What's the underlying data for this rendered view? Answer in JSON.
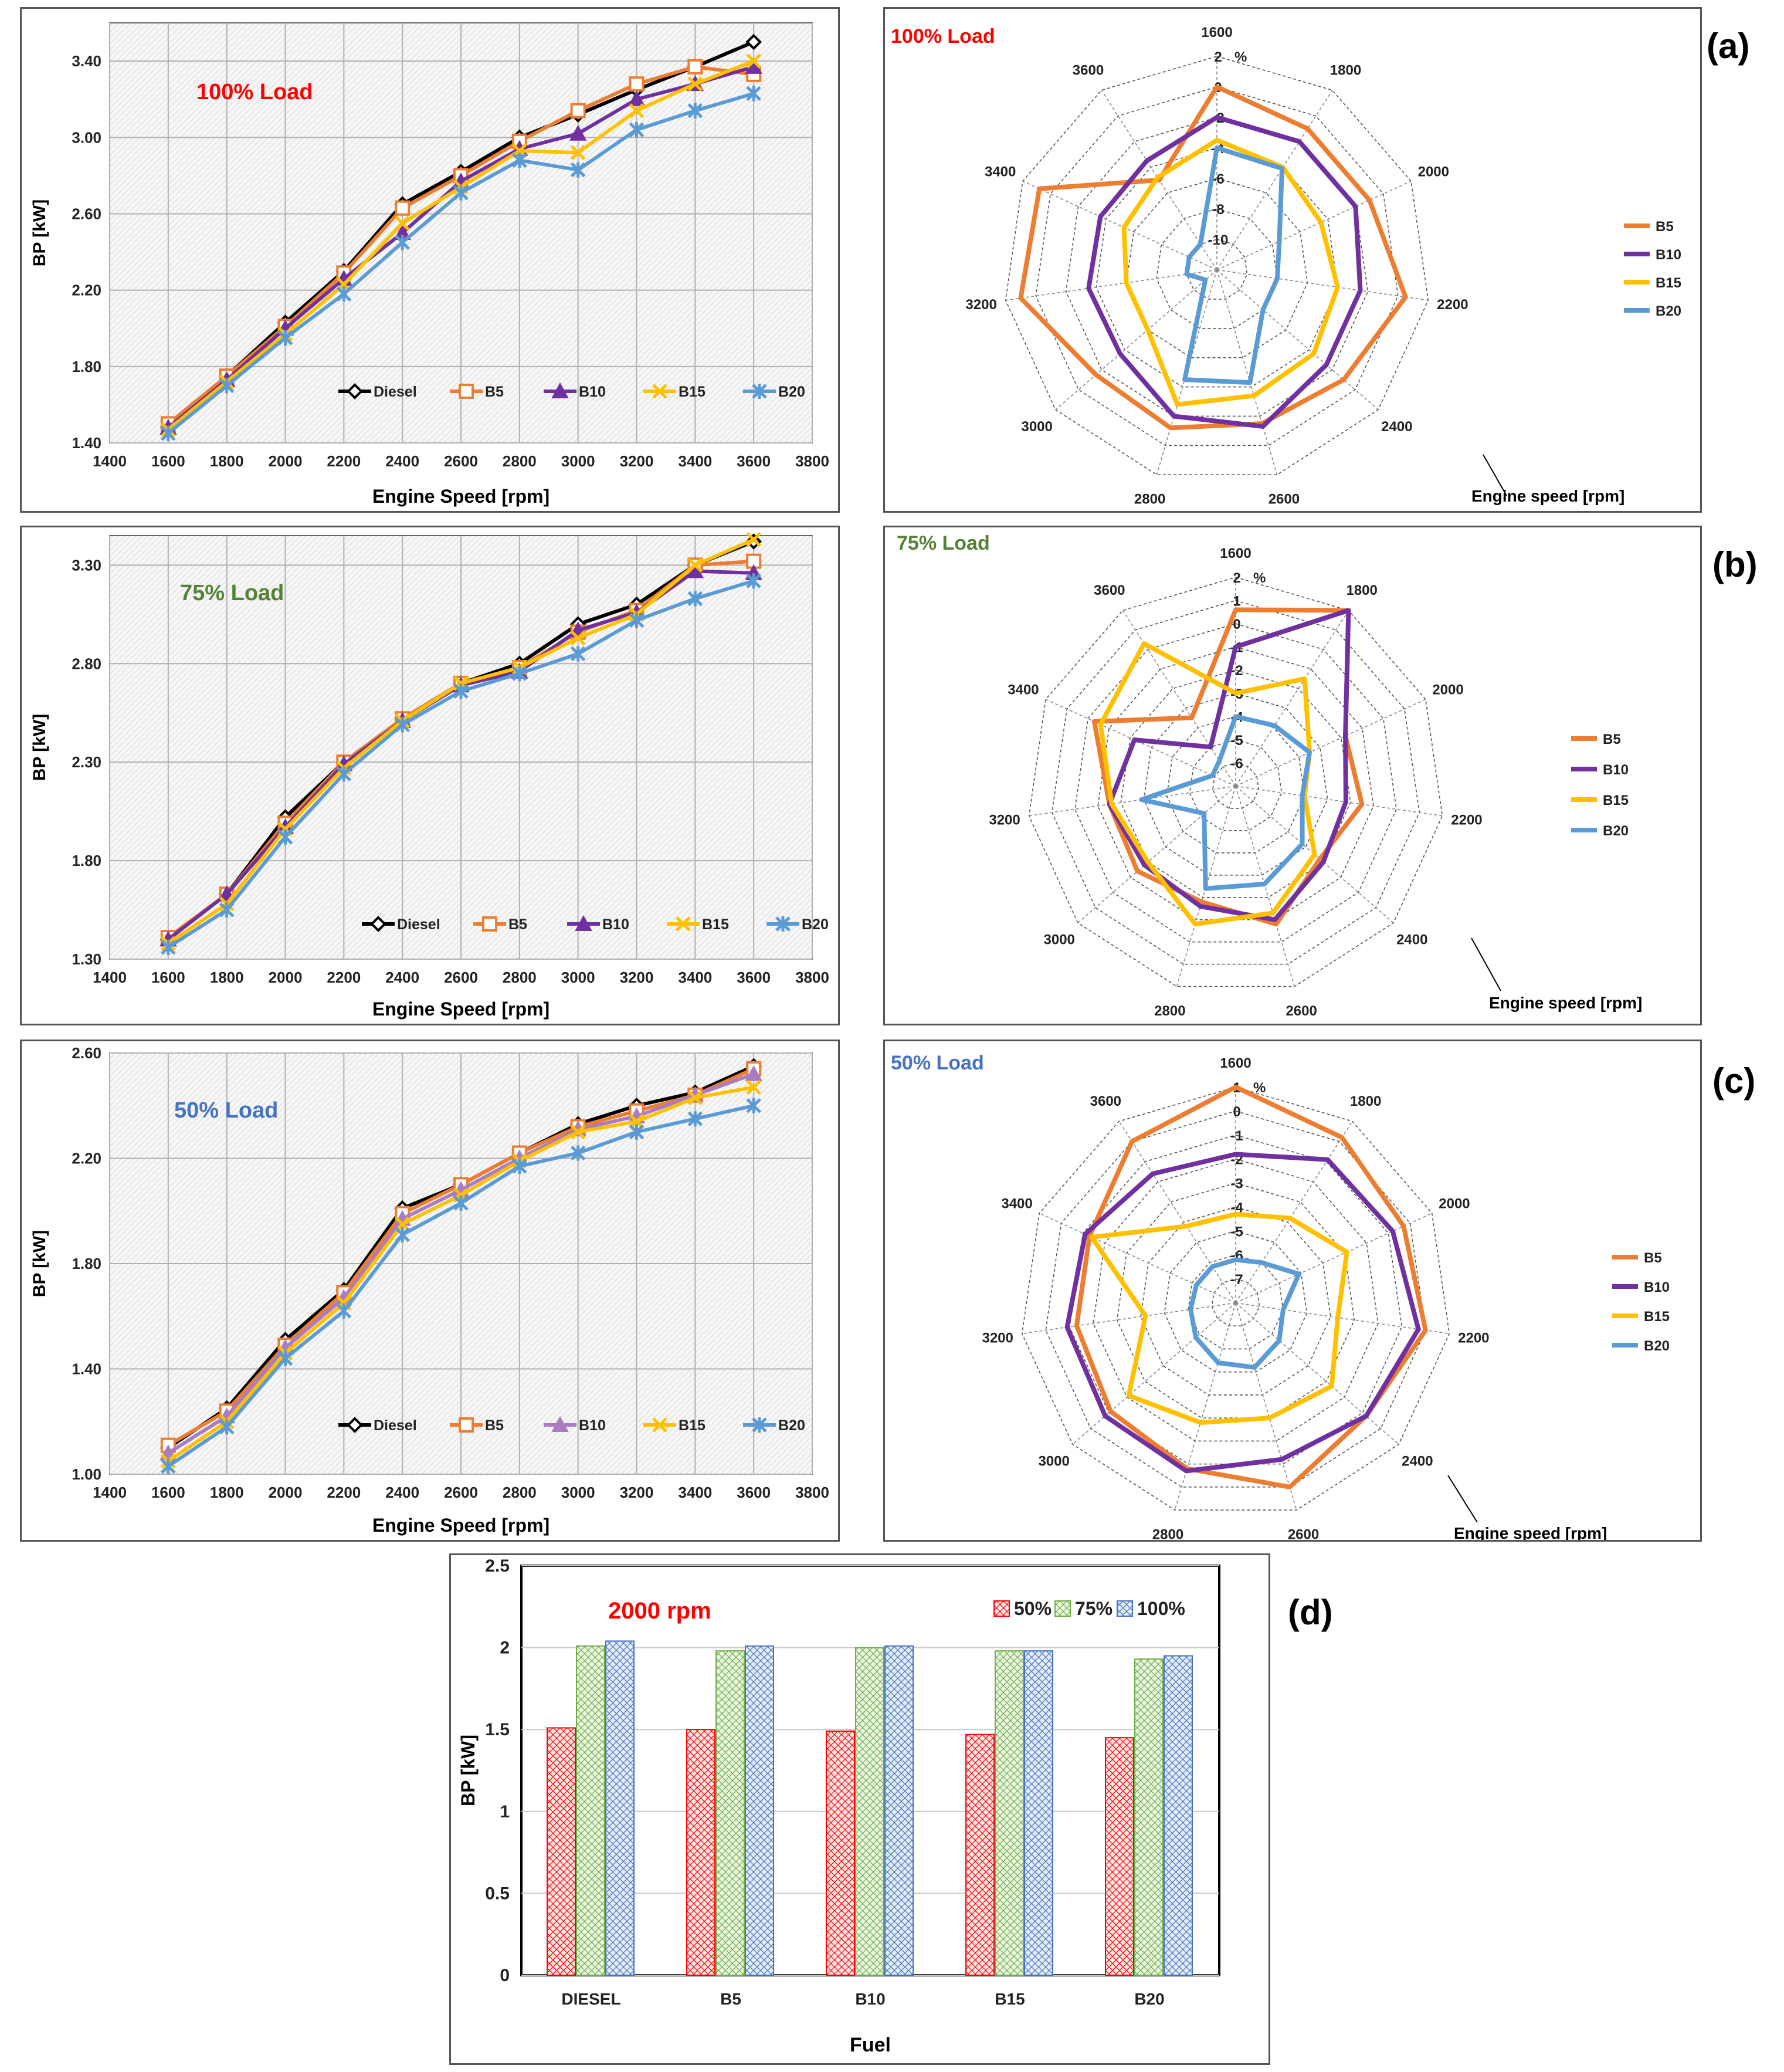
{
  "figure_tags": {
    "a": "(a)",
    "b": "(b)",
    "c": "(c)",
    "d": "(d)"
  },
  "chart_data": [
    {
      "id": "line_100",
      "type": "line",
      "title": "100% Load",
      "title_color": "#ff0000",
      "xlabel": "Engine Speed [rpm]",
      "ylabel": "BP [kW]",
      "xlim": [
        1400,
        3800
      ],
      "ylim": [
        1.4,
        3.6
      ],
      "xticks": [
        "1400",
        "1600",
        "1800",
        "2000",
        "2200",
        "2400",
        "2600",
        "2800",
        "3000",
        "3200",
        "3400",
        "3600",
        "3800"
      ],
      "yticks": [
        "1.40",
        "1.80",
        "2.20",
        "2.60",
        "3.00",
        "3.40"
      ],
      "x": [
        1600,
        1800,
        2000,
        2200,
        2400,
        2600,
        2800,
        3000,
        3200,
        3400,
        3600
      ],
      "legend_position": "bottom-right",
      "series": [
        {
          "name": "Diesel",
          "color": "#000000",
          "marker": "diamond",
          "values": [
            1.48,
            1.75,
            2.03,
            2.3,
            2.65,
            2.82,
            3.0,
            3.12,
            3.25,
            3.37,
            3.5
          ]
        },
        {
          "name": "B5",
          "color": "#ed7d31",
          "marker": "square",
          "values": [
            1.5,
            1.75,
            2.01,
            2.29,
            2.63,
            2.8,
            2.98,
            3.14,
            3.28,
            3.37,
            3.33
          ]
        },
        {
          "name": "B10",
          "color": "#7030a0",
          "marker": "triangle",
          "values": [
            1.48,
            1.73,
            2.0,
            2.26,
            2.5,
            2.77,
            2.94,
            3.02,
            3.2,
            3.28,
            3.37
          ]
        },
        {
          "name": "B15",
          "color": "#ffc000",
          "marker": "x",
          "values": [
            1.47,
            1.72,
            1.97,
            2.23,
            2.55,
            2.74,
            2.93,
            2.92,
            3.14,
            3.28,
            3.4
          ]
        },
        {
          "name": "B20",
          "color": "#5b9bd5",
          "marker": "star",
          "values": [
            1.45,
            1.7,
            1.95,
            2.18,
            2.45,
            2.71,
            2.88,
            2.83,
            3.04,
            3.14,
            3.23
          ]
        }
      ]
    },
    {
      "id": "line_75",
      "type": "line",
      "title": "75% Load",
      "title_color": "#548235",
      "xlabel": "Engine Speed [rpm]",
      "ylabel": "BP [kW]",
      "xlim": [
        1400,
        3800
      ],
      "ylim": [
        1.3,
        3.45
      ],
      "xticks": [
        "1400",
        "1600",
        "1800",
        "2000",
        "2200",
        "2400",
        "2600",
        "2800",
        "3000",
        "3200",
        "3400",
        "3600",
        "3800"
      ],
      "yticks": [
        "1.30",
        "1.80",
        "2.30",
        "2.80",
        "3.30"
      ],
      "x": [
        1600,
        1800,
        2000,
        2200,
        2400,
        2600,
        2800,
        3000,
        3200,
        3400,
        3600
      ],
      "legend_position": "bottom-right",
      "series": [
        {
          "name": "Diesel",
          "color": "#000000",
          "marker": "diamond",
          "values": [
            1.4,
            1.63,
            2.02,
            2.3,
            2.52,
            2.7,
            2.8,
            3.0,
            3.1,
            3.3,
            3.42
          ]
        },
        {
          "name": "B5",
          "color": "#ed7d31",
          "marker": "square",
          "values": [
            1.41,
            1.63,
            1.99,
            2.3,
            2.52,
            2.7,
            2.78,
            2.96,
            3.07,
            3.3,
            3.32
          ]
        },
        {
          "name": "B10",
          "color": "#7030a0",
          "marker": "triangle",
          "values": [
            1.4,
            1.63,
            1.97,
            2.29,
            2.51,
            2.69,
            2.76,
            2.97,
            3.06,
            3.27,
            3.26
          ]
        },
        {
          "name": "B15",
          "color": "#ffc000",
          "marker": "x",
          "values": [
            1.38,
            1.58,
            1.96,
            2.27,
            2.51,
            2.7,
            2.78,
            2.93,
            3.05,
            3.3,
            3.43
          ]
        },
        {
          "name": "B20",
          "color": "#5b9bd5",
          "marker": "star",
          "values": [
            1.36,
            1.55,
            1.92,
            2.24,
            2.49,
            2.66,
            2.75,
            2.85,
            3.02,
            3.13,
            3.22
          ]
        }
      ]
    },
    {
      "id": "line_50",
      "type": "line",
      "title": "50% Load",
      "title_color": "#4472c4",
      "xlabel": "Engine Speed [rpm]",
      "ylabel": "BP [kW]",
      "xlim": [
        1400,
        3800
      ],
      "ylim": [
        1.0,
        2.6
      ],
      "xticks": [
        "1400",
        "1600",
        "1800",
        "2000",
        "2200",
        "2400",
        "2600",
        "2800",
        "3000",
        "3200",
        "3400",
        "3600",
        "3800"
      ],
      "yticks": [
        "1.00",
        "1.40",
        "1.80",
        "2.20",
        "2.60"
      ],
      "x": [
        1600,
        1800,
        2000,
        2200,
        2400,
        2600,
        2800,
        3000,
        3200,
        3400,
        3600
      ],
      "legend_position": "bottom-right",
      "series": [
        {
          "name": "Diesel",
          "color": "#000000",
          "marker": "diamond",
          "values": [
            1.1,
            1.25,
            1.51,
            1.7,
            2.01,
            2.1,
            2.22,
            2.33,
            2.4,
            2.45,
            2.55
          ]
        },
        {
          "name": "B5",
          "color": "#ed7d31",
          "marker": "square",
          "values": [
            1.11,
            1.24,
            1.49,
            1.69,
            1.99,
            2.1,
            2.22,
            2.32,
            2.38,
            2.44,
            2.54
          ]
        },
        {
          "name": "B10",
          "color": "#a97cc4",
          "marker": "triangle",
          "values": [
            1.08,
            1.22,
            1.48,
            1.67,
            1.97,
            2.08,
            2.2,
            2.31,
            2.36,
            2.44,
            2.52
          ]
        },
        {
          "name": "B15",
          "color": "#ffc000",
          "marker": "x",
          "values": [
            1.05,
            1.2,
            1.46,
            1.65,
            1.95,
            2.06,
            2.19,
            2.3,
            2.34,
            2.43,
            2.47
          ]
        },
        {
          "name": "B20",
          "color": "#5b9bd5",
          "marker": "star",
          "values": [
            1.03,
            1.18,
            1.44,
            1.62,
            1.91,
            2.03,
            2.17,
            2.22,
            2.3,
            2.35,
            2.4
          ]
        }
      ]
    },
    {
      "id": "radar_100",
      "type": "radar",
      "title": "100% Load",
      "title_color": "#ff0000",
      "unit_label": "%",
      "axis_caption": "Engine speed [rpm]",
      "categories": [
        "1600",
        "1800",
        "2000",
        "2200",
        "2400",
        "2600",
        "2800",
        "3000",
        "3200",
        "3400",
        "3600"
      ],
      "rlim": [
        -12,
        2
      ],
      "rticks": [
        "2",
        "0",
        "-2",
        "-4",
        "-6",
        "-8",
        "-10"
      ],
      "series": [
        {
          "name": "B5",
          "color": "#ed7d31",
          "values": [
            0,
            -1,
            -1,
            0.5,
            -1,
            -1.5,
            -1.2,
            -1.5,
            1,
            0.8,
            -5
          ]
        },
        {
          "name": "B10",
          "color": "#7030a0",
          "values": [
            -2,
            -2,
            -2,
            -2.5,
            -2.5,
            -1.3,
            -2,
            -3.6,
            -3.5,
            -3.6,
            -3.5
          ]
        },
        {
          "name": "B15",
          "color": "#ffc000",
          "values": [
            -3.5,
            -4,
            -4.5,
            -4,
            -3.6,
            -3.4,
            -2.8,
            -6,
            -6,
            -5.3,
            -4.8
          ]
        },
        {
          "name": "B20",
          "color": "#5b9bd5",
          "values": [
            -4,
            -4.1,
            -7.5,
            -8,
            -8,
            -4.3,
            -4.5,
            -11,
            -10,
            -10,
            -10
          ]
        }
      ]
    },
    {
      "id": "radar_75",
      "type": "radar",
      "title": "75% Load",
      "title_color": "#548235",
      "unit_label": "%",
      "axis_caption": "Engine speed [rpm]",
      "categories": [
        "1600",
        "1800",
        "2000",
        "2200",
        "2400",
        "2600",
        "2800",
        "3000",
        "3200",
        "3400",
        "3600"
      ],
      "rlim": [
        -7,
        2
      ],
      "rticks": [
        "2",
        "1",
        "0",
        "-1",
        "-2",
        "-3",
        "-4",
        "-5",
        "-6"
      ],
      "series": [
        {
          "name": "B5",
          "color": "#ed7d31",
          "values": [
            0.6,
            2,
            -1.8,
            -1.5,
            -2.2,
            -0.8,
            -1.8,
            -1.4,
            -1.5,
            -0.3,
            -3.5
          ]
        },
        {
          "name": "B10",
          "color": "#7030a0",
          "values": [
            -1,
            2,
            -1.8,
            -2.2,
            -2,
            -1,
            -1.6,
            -1.8,
            -1.5,
            -2.2,
            -5
          ]
        },
        {
          "name": "B15",
          "color": "#ffc000",
          "values": [
            -3,
            -1.5,
            -3.5,
            -4,
            -2.5,
            -1.3,
            -0.8,
            -2,
            -1.6,
            -0.6,
            0.3
          ]
        },
        {
          "name": "B20",
          "color": "#5b9bd5",
          "values": [
            -4,
            -3.9,
            -3.5,
            -4.1,
            -3.2,
            -2.6,
            -2.4,
            -5.2,
            -2.9,
            -5.9,
            -5.7
          ]
        }
      ]
    },
    {
      "id": "radar_50",
      "type": "radar",
      "title": "50% Load",
      "title_color": "#4472c4",
      "unit_label": "%",
      "axis_caption": "Engine speed [rpm]",
      "categories": [
        "1600",
        "1800",
        "2000",
        "2200",
        "2400",
        "2600",
        "2800",
        "3000",
        "3200",
        "3400",
        "3600"
      ],
      "rlim": [
        -8,
        1
      ],
      "rticks": [
        "1",
        "0",
        "-1",
        "-2",
        "-3",
        "-4",
        "-5",
        "-6",
        "-7"
      ],
      "series": [
        {
          "name": "B5",
          "color": "#ed7d31",
          "values": [
            1,
            0.2,
            -0.3,
            0,
            -0.8,
            0,
            -0.8,
            -1.1,
            -1.3,
            -1.3,
            0
          ]
        },
        {
          "name": "B10",
          "color": "#7030a0",
          "values": [
            -1.8,
            -0.9,
            -0.8,
            -0.3,
            -0.8,
            -1.2,
            -0.7,
            -0.8,
            -0.9,
            -1.1,
            -1.6
          ]
        },
        {
          "name": "B15",
          "color": "#ffc000",
          "values": [
            -4.3,
            -3.8,
            -2.9,
            -3.7,
            -2.7,
            -3,
            -2.8,
            -2.1,
            -4.2,
            -1.4,
            -4.2
          ]
        },
        {
          "name": "B20",
          "color": "#5b9bd5",
          "values": [
            -6.2,
            -6,
            -5.1,
            -6,
            -5.6,
            -5.2,
            -5.4,
            -5.8,
            -6.1,
            -6.2,
            -6.2
          ]
        }
      ]
    },
    {
      "id": "bar_2000",
      "type": "bar",
      "title": "2000 rpm",
      "title_color": "#ff0000",
      "xlabel": "Fuel",
      "ylabel": "BP [kW]",
      "ylim": [
        0,
        2.5
      ],
      "yticks": [
        "0",
        "0.5",
        "1",
        "1.5",
        "2",
        "2.5"
      ],
      "categories": [
        "DIESEL",
        "B5",
        "B10",
        "B15",
        "B20"
      ],
      "legend_position": "top-right",
      "series": [
        {
          "name": "50%",
          "color": "#ff0000",
          "values": [
            1.51,
            1.5,
            1.49,
            1.47,
            1.45
          ]
        },
        {
          "name": "75%",
          "color": "#70ad47",
          "values": [
            2.01,
            1.98,
            2.0,
            1.98,
            1.93
          ]
        },
        {
          "name": "100%",
          "color": "#4472c4",
          "values": [
            2.04,
            2.01,
            2.01,
            1.98,
            1.95
          ]
        }
      ]
    }
  ]
}
